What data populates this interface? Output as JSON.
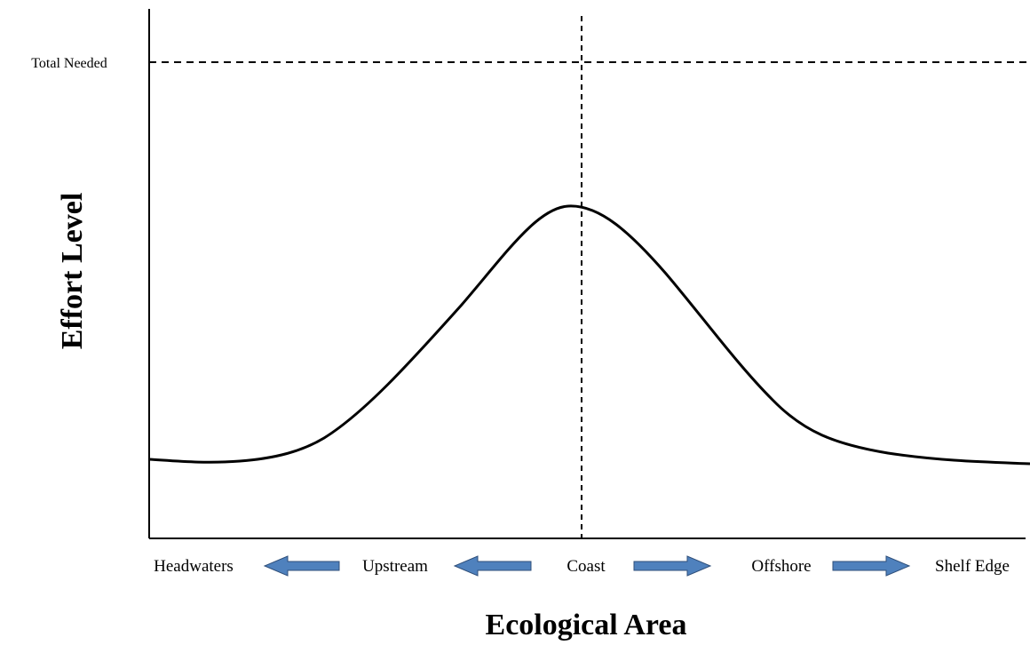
{
  "y_axis": {
    "title": "Effort Level",
    "reference_label": "Total Needed"
  },
  "x_axis": {
    "title": "Ecological Area",
    "zones": [
      "Headwaters",
      "Upstream",
      "Coast",
      "Offshore",
      "Shelf Edge"
    ]
  }
}
